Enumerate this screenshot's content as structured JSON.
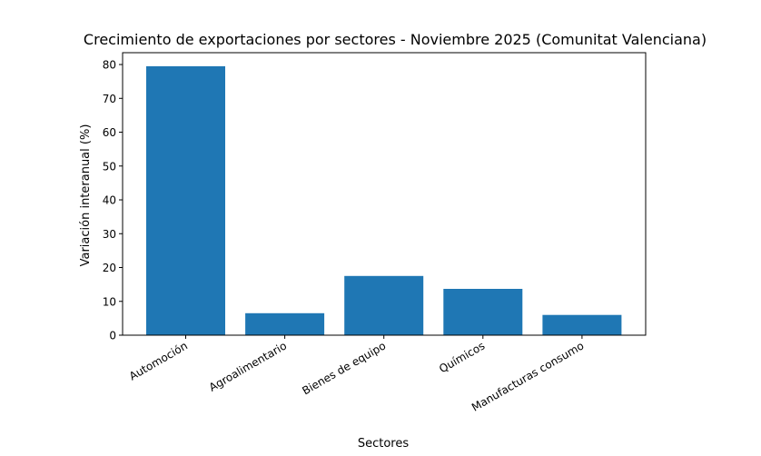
{
  "chart_data": {
    "type": "bar",
    "title": "Crecimiento de exportaciones por sectores - Noviembre 2025 (Comunitat Valenciana)",
    "xlabel": "Sectores",
    "ylabel": "Variación interanual (%)",
    "categories": [
      "Automoción",
      "Agroalimentario",
      "Bienes de equipo",
      "Químicos",
      "Manufacturas consumo"
    ],
    "values": [
      79.5,
      6.5,
      17.5,
      13.7,
      6.0
    ],
    "ylim": [
      0,
      83.5
    ],
    "yticks": [
      0,
      10,
      20,
      30,
      40,
      50,
      60,
      70,
      80
    ],
    "bar_color": "#1f77b4",
    "grid": false
  }
}
